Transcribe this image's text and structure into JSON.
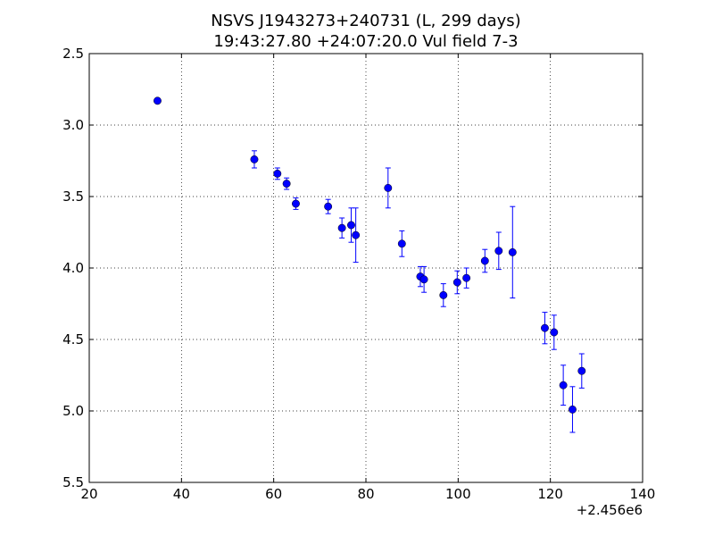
{
  "chart_data": {
    "type": "scatter",
    "title_line1": "NSVS J1943273+240731 (L, 299 days)",
    "title_line2": "19:43:27.80 +24:07:20.0 Vul field 7-3",
    "xlabel": "",
    "ylabel": "",
    "x_offset_label": "+2.456e6",
    "xlim": [
      20,
      140
    ],
    "ylim": [
      5.5,
      2.5
    ],
    "y_inverted": true,
    "grid": true,
    "x_ticks": [
      20,
      40,
      60,
      80,
      100,
      120,
      140
    ],
    "x_tick_labels": [
      "20",
      "40",
      "60",
      "80",
      "100",
      "120",
      "140"
    ],
    "y_ticks": [
      2.5,
      3.0,
      3.5,
      4.0,
      4.5,
      5.0,
      5.5
    ],
    "y_tick_labels": [
      "2.5",
      "3.0",
      "3.5",
      "4.0",
      "4.5",
      "5.0",
      "5.5"
    ],
    "marker_color": "#0000ff",
    "series": [
      {
        "x": [
          34.8,
          55.8,
          60.8,
          62.8,
          64.8,
          71.8,
          74.8,
          76.8,
          77.8,
          84.8,
          87.8,
          91.8,
          92.6,
          96.8,
          99.8,
          101.8,
          105.8,
          108.8,
          111.8,
          118.8,
          120.8,
          122.8,
          124.8,
          126.8
        ],
        "y": [
          2.83,
          3.24,
          3.34,
          3.41,
          3.55,
          3.57,
          3.72,
          3.7,
          3.77,
          3.44,
          3.83,
          4.06,
          4.08,
          4.19,
          4.1,
          4.07,
          3.95,
          3.88,
          3.89,
          4.42,
          4.45,
          4.82,
          4.99,
          4.72
        ],
        "yerr": [
          0.01,
          0.06,
          0.04,
          0.04,
          0.04,
          0.05,
          0.07,
          0.12,
          0.19,
          0.14,
          0.09,
          0.07,
          0.09,
          0.08,
          0.08,
          0.07,
          0.08,
          0.13,
          0.32,
          0.11,
          0.12,
          0.14,
          0.16,
          0.12
        ]
      }
    ]
  }
}
